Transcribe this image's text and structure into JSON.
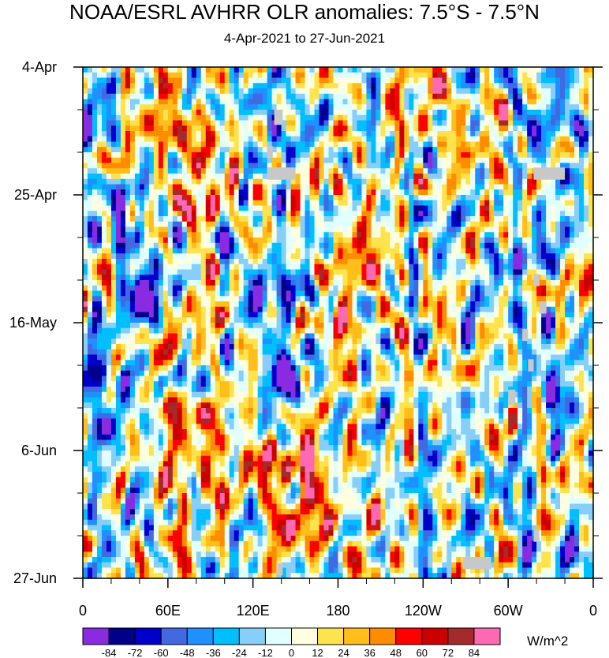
{
  "chart_data": {
    "type": "heatmap",
    "title": "NOAA/ESRL AVHRR OLR anomalies: 7.5°S - 7.5°N",
    "subtitle": "4-Apr-2021 to 27-Jun-2021",
    "x_ticks": [
      "0",
      "60E",
      "120E",
      "180",
      "120W",
      "60W",
      "0"
    ],
    "x_range_deg": [
      0,
      360
    ],
    "y_ticks": [
      "4-Apr",
      "25-Apr",
      "16-May",
      "6-Jun",
      "27-Jun"
    ],
    "y_range_days": [
      0,
      84
    ],
    "colorbar": {
      "units": "W/m^2",
      "levels": [
        "-84",
        "-72",
        "-60",
        "-48",
        "-36",
        "-24",
        "-12",
        "0",
        "12",
        "24",
        "36",
        "48",
        "60",
        "72",
        "84"
      ],
      "colors": [
        "#8a2be2",
        "#00008b",
        "#0000cd",
        "#4169e1",
        "#1e90ff",
        "#00bfff",
        "#87cefa",
        "#e0ffff",
        "#ffffe0",
        "#ffe34d",
        "#ffbe1a",
        "#ff8c00",
        "#ff0000",
        "#cc0000",
        "#a52a2a",
        "#ff69b4"
      ]
    },
    "missing_color": "#c8c8c8",
    "anomaly_features": [
      {
        "lon": 55,
        "day": 8,
        "value": 40
      },
      {
        "lon": 80,
        "day": 12,
        "value": 52
      },
      {
        "lon": 20,
        "day": 6,
        "value": -40
      },
      {
        "lon": 150,
        "day": 10,
        "value": -50
      },
      {
        "lon": 70,
        "day": 22,
        "value": 40
      },
      {
        "lon": 110,
        "day": 22,
        "value": 35
      },
      {
        "lon": 150,
        "day": 24,
        "value": -45
      },
      {
        "lon": 20,
        "day": 25,
        "value": -36
      },
      {
        "lon": 48,
        "day": 38,
        "value": -88
      },
      {
        "lon": 90,
        "day": 37,
        "value": 55
      },
      {
        "lon": 120,
        "day": 36,
        "value": -45
      },
      {
        "lon": 150,
        "day": 38,
        "value": -75
      },
      {
        "lon": 160,
        "day": 41,
        "value": 45
      },
      {
        "lon": 200,
        "day": 32,
        "value": 24
      },
      {
        "lon": 330,
        "day": 30,
        "value": -45
      },
      {
        "lon": 345,
        "day": 36,
        "value": 40
      },
      {
        "lon": 140,
        "day": 47,
        "value": -40
      },
      {
        "lon": 150,
        "day": 52,
        "value": -60
      },
      {
        "lon": 70,
        "day": 57,
        "value": 55
      },
      {
        "lon": 75,
        "day": 44,
        "value": 38
      },
      {
        "lon": 80,
        "day": 52,
        "value": -40
      },
      {
        "lon": 30,
        "day": 52,
        "value": -30
      },
      {
        "lon": 230,
        "day": 52,
        "value": 20
      },
      {
        "lon": 325,
        "day": 55,
        "value": -42
      },
      {
        "lon": 60,
        "day": 67,
        "value": 45
      },
      {
        "lon": 155,
        "day": 66,
        "value": 52
      },
      {
        "lon": 120,
        "day": 66,
        "value": 30
      },
      {
        "lon": 260,
        "day": 66,
        "value": 28
      },
      {
        "lon": 300,
        "day": 67,
        "value": -35
      },
      {
        "lon": 20,
        "day": 73,
        "value": -30
      },
      {
        "lon": 160,
        "day": 76,
        "value": 45
      },
      {
        "lon": 210,
        "day": 75,
        "value": 20
      },
      {
        "lon": 340,
        "day": 80,
        "value": -42
      }
    ],
    "missing_regions": [
      {
        "lon0": 135,
        "lon1": 141,
        "day0": 7,
        "day1": 9.5
      },
      {
        "lon0": 130,
        "lon1": 150,
        "day0": 16.5,
        "day1": 18.5
      },
      {
        "lon0": 130,
        "lon1": 134,
        "day0": 13,
        "day1": 15
      },
      {
        "lon0": 318,
        "lon1": 340,
        "day0": 16.5,
        "day1": 18.5
      },
      {
        "lon0": 318,
        "lon1": 322,
        "day0": 34,
        "day1": 36
      },
      {
        "lon0": 322,
        "lon1": 327,
        "day0": 38.5,
        "day1": 40.5
      },
      {
        "lon0": 310,
        "lon1": 314,
        "day0": 43,
        "day1": 45
      },
      {
        "lon0": 314,
        "lon1": 318,
        "day0": 48,
        "day1": 50
      },
      {
        "lon0": 300,
        "lon1": 305,
        "day0": 53,
        "day1": 55.5
      },
      {
        "lon0": 268,
        "lon1": 288,
        "day0": 80.5,
        "day1": 82.5
      },
      {
        "lon0": 137,
        "lon1": 141,
        "day0": 81.5,
        "day1": 83.5
      },
      {
        "lon0": 318,
        "lon1": 322,
        "day0": 76,
        "day1": 78
      }
    ]
  }
}
